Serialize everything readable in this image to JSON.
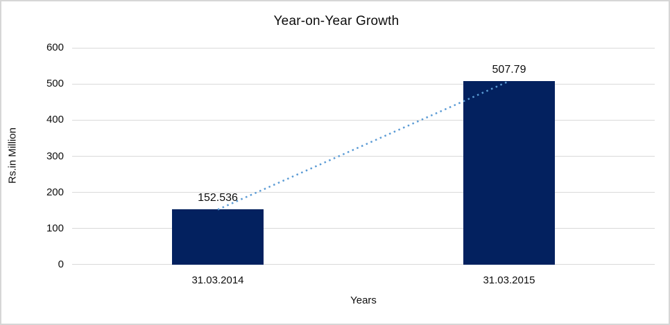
{
  "chart_data": {
    "type": "bar",
    "title": "Year-on-Year Growth",
    "categories": [
      "31.03.2014",
      "31.03.2015"
    ],
    "values": [
      152.536,
      507.79
    ],
    "value_labels": [
      "152.536",
      "507.79"
    ],
    "xlabel": "Years",
    "ylabel": "Rs.in Million",
    "ylim": [
      0,
      600
    ],
    "yticks": [
      0,
      100,
      200,
      300,
      400,
      500,
      600
    ],
    "grid": true,
    "legend": false,
    "bar_color": "#03215f",
    "gridline_color": "#d9d9d9",
    "trendline": {
      "type": "linear",
      "style": "dotted",
      "color": "#5b9bd5"
    }
  }
}
